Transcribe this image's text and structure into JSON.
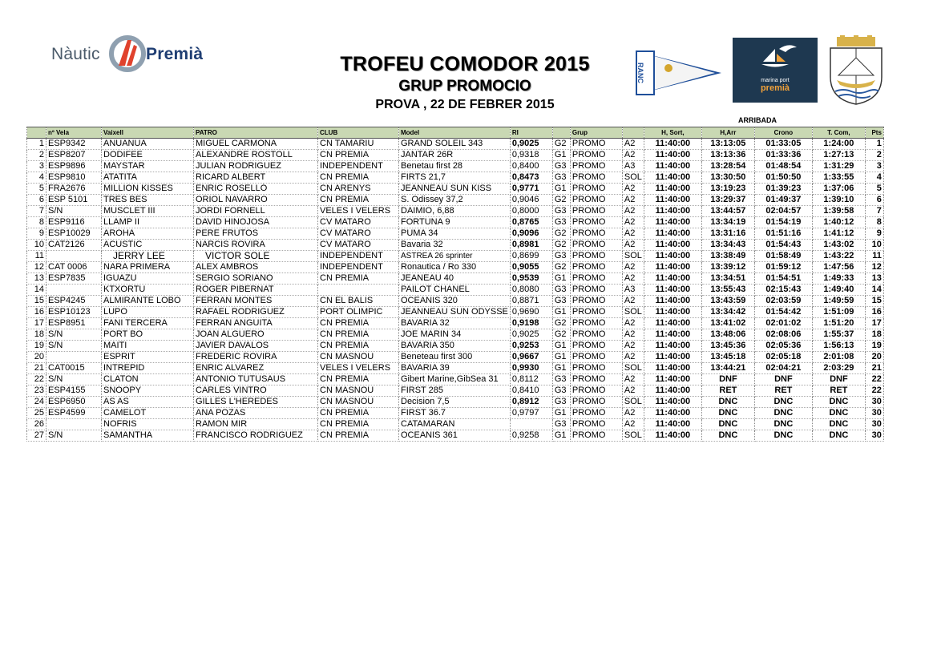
{
  "logos": {
    "nautic_left": "Nàutic",
    "nautic_right": "Premià",
    "ranc": "RANC",
    "marina_top": "marina port",
    "marina_bottom": "premià"
  },
  "title": "TROFEU COMODOR 2015",
  "subtitle": "GRUP PROMOCIO",
  "date_line": "PROVA  , 22 DE FEBRER 2015",
  "arribada": "ARRIBADA",
  "columns": [
    "nº Vela",
    "Vaixell",
    "PATRO",
    "CLUB",
    "Model",
    "RI",
    "",
    "Grup",
    "",
    "H, Sort,",
    "H,Arr",
    "Crono",
    "T. Com,",
    "Pts"
  ],
  "rows": [
    {
      "pos": "1",
      "vela": "ESP9342",
      "vaixell": "ANUANUA",
      "patro": "MIGUEL CARMONA",
      "club": "CN TAMARIU",
      "model": "GRAND SOLEIL 343",
      "ri": "0,9025",
      "ri_bold": true,
      "g": "G2",
      "grup": "PROMO",
      "cls": "A2",
      "hsort": "11:40:00",
      "harr": "13:13:05",
      "crono": "01:33:05",
      "tcom": "1:24:00",
      "pts": "1"
    },
    {
      "pos": "2",
      "vela": "ESP8207",
      "vaixell": "DODIFEE",
      "patro": "ALEXANDRE ROSTOLL",
      "club": "CN PREMIA",
      "model": "JANTAR 26R",
      "ri": "0,9318",
      "ri_bold": false,
      "g": "G1",
      "grup": "PROMO",
      "cls": "A2",
      "hsort": "11:40:00",
      "harr": "13:13:36",
      "crono": "01:33:36",
      "tcom": "1:27:13",
      "pts": "2"
    },
    {
      "pos": "3",
      "vela": "ESP9896",
      "vaixell": "MAYSTAR",
      "patro": "JULIAN RODRIGUEZ",
      "club": "INDEPENDENT",
      "model": "Benetau first 28",
      "ri": "0,8400",
      "ri_bold": false,
      "g": "G3",
      "grup": "PROMO",
      "cls": "A3",
      "hsort": "11:40:00",
      "harr": "13:28:54",
      "crono": "01:48:54",
      "tcom": "1:31:29",
      "pts": "3"
    },
    {
      "pos": "4",
      "vela": "ESP9810",
      "vaixell": "ATATITA",
      "patro": "RICARD ALBERT",
      "club": "CN  PREMIA",
      "model": "FIRTS 21,7",
      "ri": "0,8473",
      "ri_bold": true,
      "g": "G3",
      "grup": "PROMO",
      "cls": "SOL",
      "hsort": "11:40:00",
      "harr": "13:30:50",
      "crono": "01:50:50",
      "tcom": "1:33:55",
      "pts": "4"
    },
    {
      "pos": "5",
      "vela": "FRA2676",
      "vaixell": "MILLION KISSES",
      "patro": "ENRIC ROSELLÓ",
      "club": "CN ARENYS",
      "model": "JEANNEAU SUN KISS",
      "ri": "0,9771",
      "ri_bold": true,
      "g": "G1",
      "grup": "PROMO",
      "cls": "A2",
      "hsort": "11:40:00",
      "harr": "13:19:23",
      "crono": "01:39:23",
      "tcom": "1:37:06",
      "pts": "5"
    },
    {
      "pos": "6",
      "vela": "ESP 5101",
      "vaixell": "TRES BES",
      "patro": "ORIOL NAVARRO",
      "club": "CN  PREMIA",
      "model": "S. Odissey 37,2",
      "ri": "0,9046",
      "ri_bold": false,
      "g": "G2",
      "grup": "PROMO",
      "cls": "A2",
      "hsort": "11:40:00",
      "harr": "13:29:37",
      "crono": "01:49:37",
      "tcom": "1:39:10",
      "pts": "6"
    },
    {
      "pos": "7",
      "vela": "S/N",
      "vaixell": "MUSCLET III",
      "patro": "JORDI FORNELL",
      "club": "VELES I VELERS",
      "model": "DAIMIO, 6,88",
      "ri": "0,8000",
      "ri_bold": false,
      "g": "G3",
      "grup": "PROMO",
      "cls": "A2",
      "hsort": "11:40:00",
      "harr": "13:44:57",
      "crono": "02:04:57",
      "tcom": "1:39:58",
      "pts": "7"
    },
    {
      "pos": "8",
      "vela": "ESP9116",
      "vaixell": "LLAMP II",
      "patro": "DAVID HINOJOSA",
      "club": "CV MATARO",
      "model": "FORTUNA 9",
      "ri": "0,8765",
      "ri_bold": true,
      "g": "G3",
      "grup": "PROMO",
      "cls": "A2",
      "hsort": "11:40:00",
      "harr": "13:34:19",
      "crono": "01:54:19",
      "tcom": "1:40:12",
      "pts": "8"
    },
    {
      "pos": "9",
      "vela": "ESP10029",
      "vaixell": "AROHA",
      "patro": "PERE FRUTOS",
      "club": "CV MATARO",
      "model": "PUMA 34",
      "ri": "0,9096",
      "ri_bold": true,
      "g": "G2",
      "grup": "PROMO",
      "cls": "A2",
      "hsort": "11:40:00",
      "harr": "13:31:16",
      "crono": "01:51:16",
      "tcom": "1:41:12",
      "pts": "9"
    },
    {
      "pos": "10",
      "vela": "CAT2126",
      "vaixell": "ACUSTIC",
      "patro": "NARCIS ROVIRA",
      "club": "CV MATARO",
      "model": "Bavaria 32",
      "ri": "0,8981",
      "ri_bold": true,
      "g": "G2",
      "grup": "PROMO",
      "cls": "A2",
      "hsort": "11:40:00",
      "harr": "13:34:43",
      "crono": "01:54:43",
      "tcom": "1:43:02",
      "pts": "10"
    },
    {
      "pos": "11",
      "vela": "",
      "vaixell": "JERRY LEE",
      "patro": "VICTOR SOLE",
      "club": "INDEPENDENT",
      "model": "ASTREA 26 sprinter",
      "ri": "0,8699",
      "ri_bold": false,
      "g": "G3",
      "grup": "PROMO",
      "cls": "SOL",
      "hsort": "11:40:00",
      "harr": "13:38:49",
      "crono": "01:58:49",
      "tcom": "1:43:22",
      "pts": "11"
    },
    {
      "pos": "12",
      "vela": "CAT 0006",
      "vaixell": "NARA PRIMERA",
      "patro": "ALEX AMBROS",
      "club": "INDEPENDENT",
      "model": "Ronautica / Ro 330",
      "ri": "0,9055",
      "ri_bold": true,
      "g": "G2",
      "grup": "PROMO",
      "cls": "A2",
      "hsort": "11:40:00",
      "harr": "13:39:12",
      "crono": "01:59:12",
      "tcom": "1:47:56",
      "pts": "12"
    },
    {
      "pos": "13",
      "vela": "ESP7835",
      "vaixell": "IGUAZU",
      "patro": "SERGIO SORIANO",
      "club": "CN  PREMIA",
      "model": "JEANEAU 40",
      "ri": "0,9539",
      "ri_bold": true,
      "g": "G1",
      "grup": "PROMO",
      "cls": "A2",
      "hsort": "11:40:00",
      "harr": "13:34:51",
      "crono": "01:54:51",
      "tcom": "1:49:33",
      "pts": "13"
    },
    {
      "pos": "14",
      "vela": "",
      "vaixell": "KTXORTU",
      "patro": "ROGER PIBERNAT",
      "club": "",
      "model": "PAILOT CHANEL",
      "ri": "0,8080",
      "ri_bold": false,
      "g": "G3",
      "grup": "PROMO",
      "cls": "A3",
      "hsort": "11:40:00",
      "harr": "13:55:43",
      "crono": "02:15:43",
      "tcom": "1:49:40",
      "pts": "14"
    },
    {
      "pos": "15",
      "vela": "ESP4245",
      "vaixell": "ALMIRANTE LOBO",
      "patro": "FERRAN MONTES",
      "club": "CN EL BALIS",
      "model": "OCEANIS 320",
      "ri": "0,8871",
      "ri_bold": false,
      "g": "G3",
      "grup": "PROMO",
      "cls": "A2",
      "hsort": "11:40:00",
      "harr": "13:43:59",
      "crono": "02:03:59",
      "tcom": "1:49:59",
      "pts": "15"
    },
    {
      "pos": "16",
      "vela": "ESP10123",
      "vaixell": "LUPO",
      "patro": "RAFAEL RODRIGUEZ",
      "club": "PORT OLIMPIC",
      "model": "JEANNEAU SUN ODYSSE",
      "ri": "0,9690",
      "ri_bold": false,
      "g": "G1",
      "grup": "PROMO",
      "cls": "SOL",
      "hsort": "11:40:00",
      "harr": "13:34:42",
      "crono": "01:54:42",
      "tcom": "1:51:09",
      "pts": "16"
    },
    {
      "pos": "17",
      "vela": "ESP8951",
      "vaixell": "FANI TERCERA",
      "patro": "FERRAN ANGUITA",
      "club": "CN PREMIA",
      "model": "BAVARIA 32",
      "ri": "0,9198",
      "ri_bold": true,
      "g": "G2",
      "grup": "PROMO",
      "cls": "A2",
      "hsort": "11:40:00",
      "harr": "13:41:02",
      "crono": "02:01:02",
      "tcom": "1:51:20",
      "pts": "17"
    },
    {
      "pos": "18",
      "vela": "S/N",
      "vaixell": "PORT BO",
      "patro": "JOAN ALGUERO",
      "club": "CN PREMIA",
      "model": "JOE MARIN 34",
      "ri": "0,9025",
      "ri_bold": false,
      "g": "G2",
      "grup": "PROMO",
      "cls": "A2",
      "hsort": "11:40:00",
      "harr": "13:48:06",
      "crono": "02:08:06",
      "tcom": "1:55:37",
      "pts": "18"
    },
    {
      "pos": "19",
      "vela": "S/N",
      "vaixell": "MAITI",
      "patro": "JAVIER DAVALOS",
      "club": "CN  PREMIA",
      "model": "BAVARIA 350",
      "ri": "0,9253",
      "ri_bold": true,
      "g": "G1",
      "grup": "PROMO",
      "cls": "A2",
      "hsort": "11:40:00",
      "harr": "13:45:36",
      "crono": "02:05:36",
      "tcom": "1:56:13",
      "pts": "19"
    },
    {
      "pos": "20",
      "vela": "",
      "vaixell": "ESPRIT",
      "patro": "FREDERIC ROVIRA",
      "club": "CN MASNOU",
      "model": "Beneteau first 300",
      "ri": "0,9667",
      "ri_bold": true,
      "g": "G1",
      "grup": "PROMO",
      "cls": "A2",
      "hsort": "11:40:00",
      "harr": "13:45:18",
      "crono": "02:05:18",
      "tcom": "2:01:08",
      "pts": "20"
    },
    {
      "pos": "21",
      "vela": "CAT0015",
      "vaixell": "INTREPID",
      "patro": "ENRIC ALVAREZ",
      "club": "VELES I VELERS",
      "model": "BAVARIA 39",
      "ri": "0,9930",
      "ri_bold": true,
      "g": "G1",
      "grup": "PROMO",
      "cls": "SOL",
      "hsort": "11:40:00",
      "harr": "13:44:21",
      "crono": "02:04:21",
      "tcom": "2:03:29",
      "pts": "21"
    },
    {
      "pos": "22",
      "vela": "S/N",
      "vaixell": "CLATON",
      "patro": "ANTONIO TUTUSAUS",
      "club": "CN PREMIA",
      "model": "Gibert Marine,GibSea 31",
      "ri": "0,8112",
      "ri_bold": false,
      "g": "G3",
      "grup": "PROMO",
      "cls": "A2",
      "hsort": "11:40:00",
      "harr": "DNF",
      "crono": "DNF",
      "tcom": "DNF",
      "pts": "22"
    },
    {
      "pos": "23",
      "vela": "ESP4155",
      "vaixell": "SNOOPY",
      "patro": "CARLES VINTRO",
      "club": "CN MASNOU",
      "model": "FIRST 285",
      "ri": "0,8410",
      "ri_bold": false,
      "g": "G3",
      "grup": "PROMO",
      "cls": "A2",
      "hsort": "11:40:00",
      "harr": "RET",
      "crono": "RET",
      "tcom": "RET",
      "pts": "22"
    },
    {
      "pos": "24",
      "vela": "ESP6950",
      "vaixell": "AS AS",
      "patro": "GILLES L'HEREDES",
      "club": "CN MASNOU",
      "model": "Decision 7,5",
      "ri": "0,8912",
      "ri_bold": true,
      "g": "G3",
      "grup": "PROMO",
      "cls": "SOL",
      "hsort": "11:40:00",
      "harr": "DNC",
      "crono": "DNC",
      "tcom": "DNC",
      "pts": "30"
    },
    {
      "pos": "25",
      "vela": "ESP4599",
      "vaixell": "CAMELOT",
      "patro": "ANA POZAS",
      "club": "CN PREMIA",
      "model": "FIRST 36.7",
      "ri": "0,9797",
      "ri_bold": false,
      "g": "G1",
      "grup": "PROMO",
      "cls": "A2",
      "hsort": "11:40:00",
      "harr": "DNC",
      "crono": "DNC",
      "tcom": "DNC",
      "pts": "30"
    },
    {
      "pos": "26",
      "vela": "",
      "vaixell": "NOFRIS",
      "patro": "RAMON MIR",
      "club": "CN  PREMIA",
      "model": "CATAMARAN",
      "ri": "",
      "ri_bold": false,
      "g": "G3",
      "grup": "PROMO",
      "cls": "A2",
      "hsort": "11:40:00",
      "harr": "DNC",
      "crono": "DNC",
      "tcom": "DNC",
      "pts": "30"
    },
    {
      "pos": "27",
      "vela": "S/N",
      "vaixell": "SAMANTHA",
      "patro": "FRANCISCO RODRIGUEZ",
      "club": "CN PREMIA",
      "model": "OCEANIS 361",
      "ri": "0,9258",
      "ri_bold": false,
      "g": "G1",
      "grup": "PROMO",
      "cls": "SOL",
      "hsort": "11:40:00",
      "harr": "DNC",
      "crono": "DNC",
      "tcom": "DNC",
      "pts": "30"
    }
  ]
}
